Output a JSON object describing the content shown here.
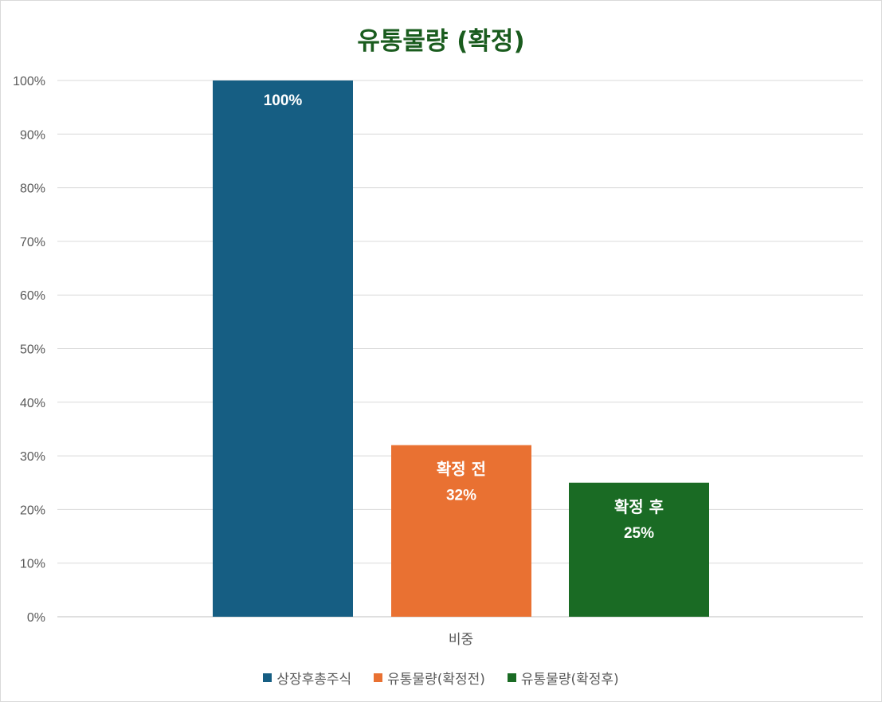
{
  "chart_data": {
    "type": "bar",
    "title": "유통물량 (확정)",
    "categories": [
      "비중"
    ],
    "series": [
      {
        "name": "상장후총주식",
        "values": [
          100
        ],
        "color": "#165e83",
        "label": "",
        "value_label": "100%"
      },
      {
        "name": "유통물량(확정전)",
        "values": [
          32
        ],
        "color": "#e97132",
        "label": "확정 전",
        "value_label": "32%"
      },
      {
        "name": "유통물량(확정후)",
        "values": [
          25
        ],
        "color": "#1a6b24",
        "label": "확정 후",
        "value_label": "25%"
      }
    ],
    "ylim": [
      0,
      100
    ],
    "y_ticks": [
      "0%",
      "10%",
      "20%",
      "30%",
      "40%",
      "50%",
      "60%",
      "70%",
      "80%",
      "90%",
      "100%"
    ],
    "grid": true,
    "legend_position": "bottom"
  }
}
